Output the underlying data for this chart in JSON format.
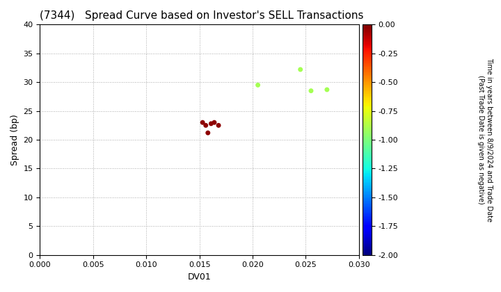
{
  "title": "(7344)   Spread Curve based on Investor's SELL Transactions",
  "xlabel": "DV01",
  "ylabel": "Spread (bp)",
  "xlim": [
    0.0,
    0.03
  ],
  "ylim": [
    0,
    40
  ],
  "xticks": [
    0.0,
    0.005,
    0.01,
    0.015,
    0.02,
    0.025,
    0.03
  ],
  "yticks": [
    0,
    5,
    10,
    15,
    20,
    25,
    30,
    35,
    40
  ],
  "colorbar_label_line1": "Time in years between 8/9/2024 and Trade Date",
  "colorbar_label_line2": "(Past Trade Date is given as negative)",
  "cmap": "jet",
  "vmin": -2.0,
  "vmax": 0.0,
  "colorbar_ticks": [
    0.0,
    -0.25,
    -0.5,
    -0.75,
    -1.0,
    -1.25,
    -1.5,
    -1.75,
    -2.0
  ],
  "scatter_x": [
    0.0153,
    0.0156,
    0.0158,
    0.0161,
    0.0164,
    0.0168,
    0.0205,
    0.0245,
    0.0255,
    0.027
  ],
  "scatter_y": [
    23.0,
    22.5,
    21.2,
    22.8,
    23.0,
    22.5,
    29.5,
    32.2,
    28.5,
    28.7
  ],
  "scatter_color": [
    -0.03,
    -0.03,
    -0.03,
    -0.03,
    -0.03,
    -0.03,
    -0.9,
    -0.9,
    -0.9,
    -0.9
  ],
  "marker_size": 25,
  "background_color": "#ffffff",
  "grid_color": "#aaaaaa",
  "title_fontsize": 11,
  "axis_fontsize": 9,
  "tick_fontsize": 8,
  "cbar_tick_fontsize": 8,
  "cbar_label_fontsize": 7
}
